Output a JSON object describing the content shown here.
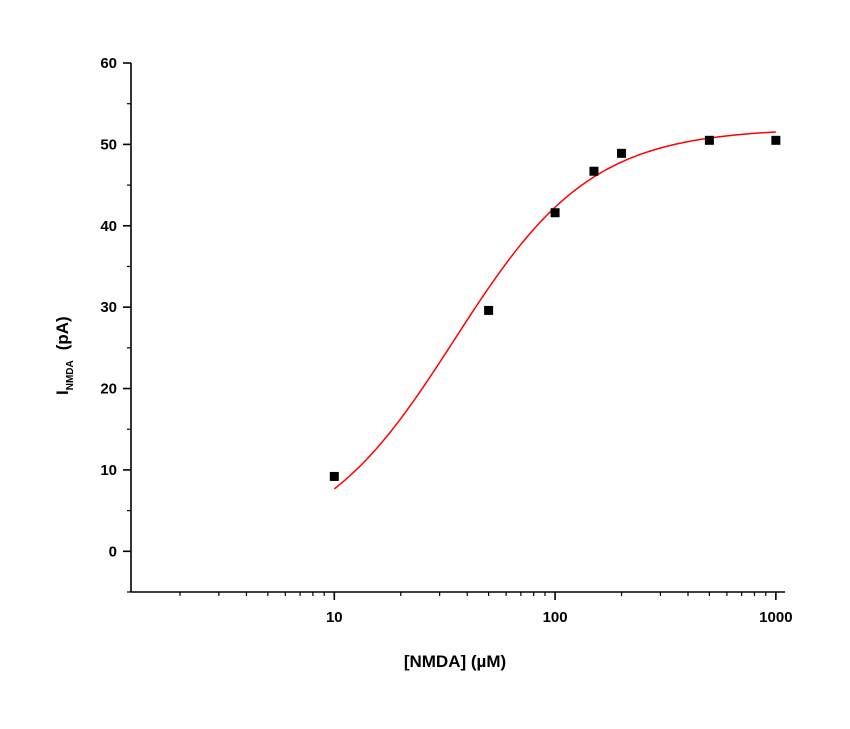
{
  "chart_data": {
    "type": "scatter",
    "xlabel": "[NMDA]  (µM)",
    "ylabel": {
      "main": "I",
      "subscript": "NMDA",
      "unit": "(pA)"
    },
    "x_scale": "log",
    "xlim": [
      1.2,
      1100
    ],
    "ylim": [
      -5,
      60
    ],
    "x_ticks": [
      10,
      100,
      1000
    ],
    "x_tick_labels": [
      "10",
      "100",
      "1000"
    ],
    "y_ticks": [
      0,
      10,
      20,
      30,
      40,
      50,
      60
    ],
    "y_tick_labels": [
      "0",
      "10",
      "20",
      "30",
      "40",
      "50",
      "60"
    ],
    "grid": false,
    "series": [
      {
        "kind": "points",
        "marker": "square",
        "color": "#000000",
        "x": [
          10,
          50,
          100,
          150,
          200,
          500,
          1000
        ],
        "y": [
          9.2,
          29.6,
          41.6,
          46.7,
          48.9,
          50.5,
          50.5
        ]
      },
      {
        "kind": "fit-curve",
        "color": "#ff0000",
        "model": "hill",
        "params": {
          "bottom": 0,
          "top": 52,
          "ec50": 35,
          "n": 1.4
        },
        "x_range": [
          10,
          1000
        ]
      }
    ]
  }
}
